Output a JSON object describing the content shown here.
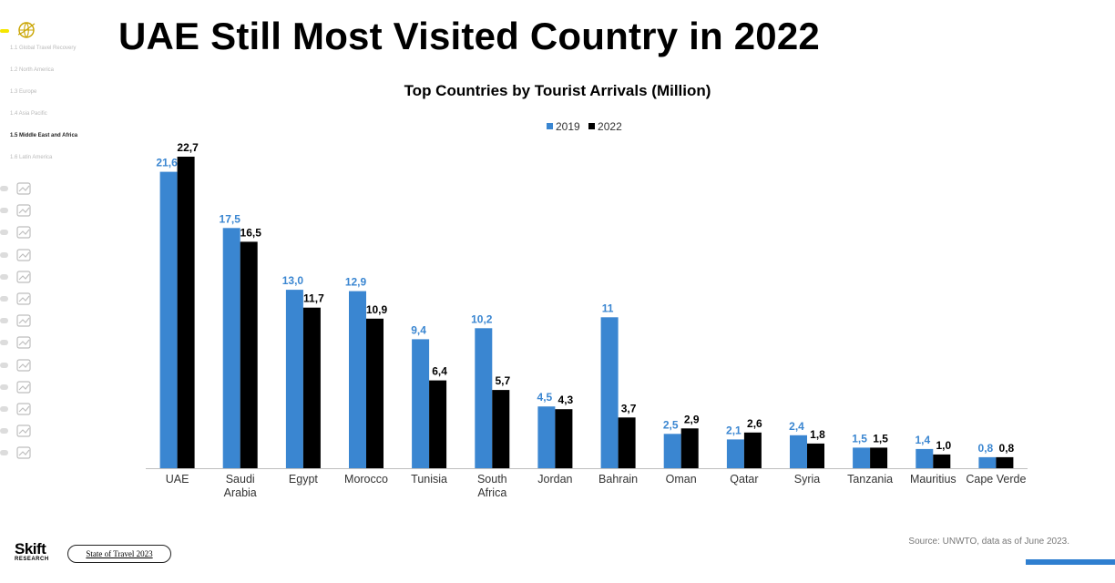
{
  "title": "UAE Still Most Visited Country in 2022",
  "sidebar": {
    "sections": [
      {
        "label": "1.1 Global Travel Recovery",
        "active": false
      },
      {
        "label": "1.2 North America",
        "active": false
      },
      {
        "label": "1.3 Europe",
        "active": false
      },
      {
        "label": "1.4 Asia Pacific",
        "active": false
      },
      {
        "label": "1.5 Middle East and Africa",
        "active": true
      },
      {
        "label": "1.6 Latin America",
        "active": false
      }
    ],
    "nav_icons": [
      "chart-icon",
      "people-icon",
      "group-icon",
      "piggy-bank-icon",
      "airplane-icon",
      "hotel-bell-icon",
      "vacation-rental-icon",
      "laptop-icon",
      "meeting-icon",
      "calendar-icon",
      "tools-icon",
      "cruise-ship-icon",
      "car-icon"
    ]
  },
  "chart_data": {
    "type": "bar",
    "title": "Top Countries by Tourist Arrivals (Million)",
    "categories": [
      "UAE",
      "Saudi Arabia",
      "Egypt",
      "Morocco",
      "Tunisia",
      "South Africa",
      "Jordan",
      "Bahrain",
      "Oman",
      "Qatar",
      "Syria",
      "Tanzania",
      "Mauritius",
      "Cape Verde"
    ],
    "series": [
      {
        "name": "2019",
        "color": "#3a86d1",
        "values": [
          21.6,
          17.5,
          13.0,
          12.9,
          9.4,
          10.2,
          4.5,
          11,
          2.5,
          2.1,
          2.4,
          1.5,
          1.4,
          0.8
        ],
        "labels": [
          "21,6",
          "17,5",
          "13,0",
          "12,9",
          "9,4",
          "10,2",
          "4,5",
          "11",
          "2,5",
          "2,1",
          "2,4",
          "1,5",
          "1,4",
          "0,8"
        ]
      },
      {
        "name": "2022",
        "color": "#000000",
        "values": [
          22.7,
          16.5,
          11.7,
          10.9,
          6.4,
          5.7,
          4.3,
          3.7,
          2.9,
          2.6,
          1.8,
          1.5,
          1.0,
          0.8
        ],
        "labels": [
          "22,7",
          "16,5",
          "11,7",
          "10,9",
          "6,4",
          "5,7",
          "4,3",
          "3,7",
          "2,9",
          "2,6",
          "1,8",
          "1,5",
          "1,0",
          "0,8"
        ]
      }
    ],
    "legend_position": "top-center",
    "grid": false
  },
  "footer": {
    "source": "Source: UNWTO, data as of June 2023.",
    "brand_name": "Skift",
    "brand_sub": "RESEARCH",
    "report_label": "State of Travel 2023"
  },
  "colors": {
    "accent_yellow": "#f5e600",
    "bar_2019": "#3a86d1",
    "bar_2022": "#000000",
    "bottom_bar": "#2f7fd0"
  }
}
